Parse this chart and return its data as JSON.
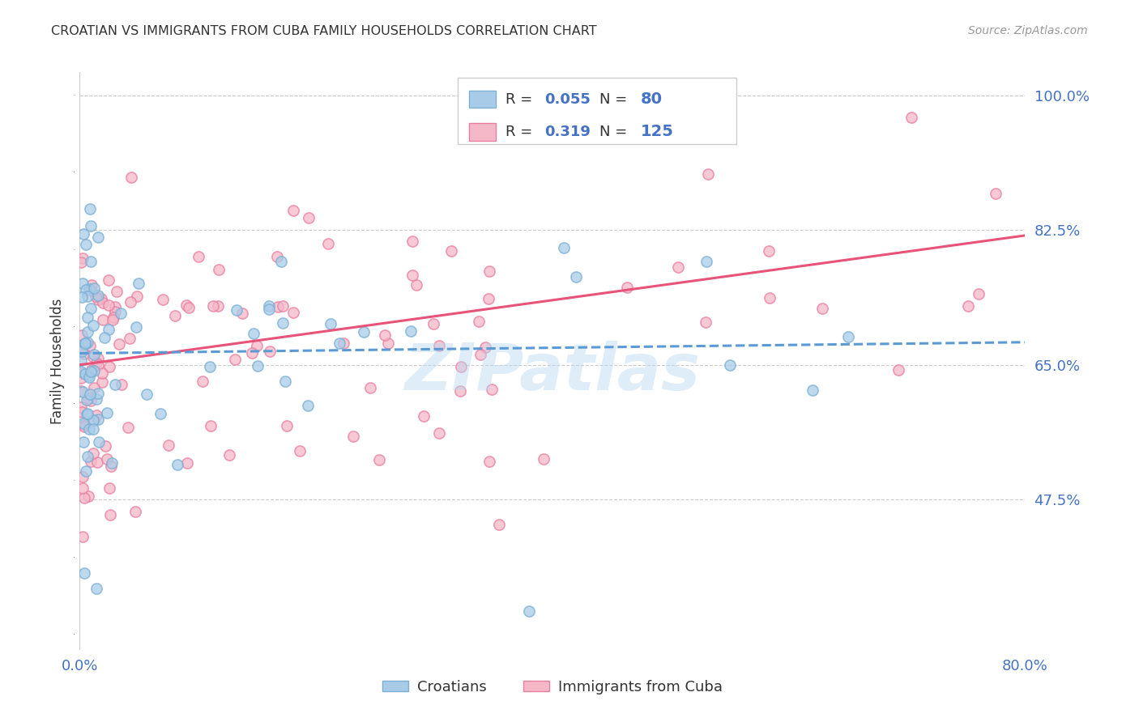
{
  "title": "CROATIAN VS IMMIGRANTS FROM CUBA FAMILY HOUSEHOLDS CORRELATION CHART",
  "source": "Source: ZipAtlas.com",
  "ylabel": "Family Households",
  "watermark": "ZIPatlas",
  "xmin": 0.0,
  "xmax": 0.8,
  "ymin": 0.28,
  "ymax": 1.03,
  "yticks": [
    0.475,
    0.65,
    0.825,
    1.0
  ],
  "ytick_labels": [
    "47.5%",
    "65.0%",
    "82.5%",
    "100.0%"
  ],
  "blue_color": "#a8cce8",
  "blue_edge_color": "#7bafd4",
  "pink_color": "#f4b8c8",
  "pink_edge_color": "#e87fa0",
  "blue_line_color": "#5b9bd5",
  "pink_line_color": "#e8537a",
  "axis_color": "#4472c4",
  "blue_R": 0.055,
  "pink_R": 0.319,
  "blue_N": 80,
  "pink_N": 125,
  "blue_intercept": 0.665,
  "blue_slope": 0.018,
  "pink_intercept": 0.65,
  "pink_slope": 0.21
}
